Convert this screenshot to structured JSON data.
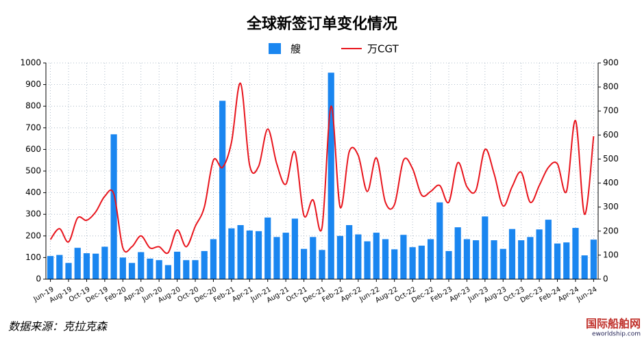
{
  "chart_data": {
    "type": "bar_line",
    "title": "全球新签订单变化情况",
    "source": "数据来源：克拉克森",
    "watermark": [
      "国际船舶网",
      "eworldship.com"
    ],
    "categories": [
      "Jun-19",
      null,
      "Aug-19",
      null,
      "Oct-19",
      null,
      "Dec-19",
      null,
      "Feb-20",
      null,
      "Apr-20",
      null,
      "Jun-20",
      null,
      "Aug-20",
      null,
      "Oct-20",
      null,
      "Dec-20",
      null,
      "Feb-21",
      null,
      "Apr-21",
      null,
      "Jun-21",
      null,
      "Aug-21",
      null,
      "Oct-21",
      null,
      "Dec-21",
      null,
      "Feb-22",
      null,
      "Apr-22",
      null,
      "Jun-22",
      null,
      "Aug-22",
      null,
      "Oct-22",
      null,
      "Dec-22",
      null,
      "Feb-23",
      null,
      "Apr-23",
      null,
      "Jun-23",
      null,
      "Aug-23",
      null,
      "Oct-23",
      null,
      "Dec-23",
      null,
      "Feb-24",
      null,
      "Apr-24",
      null,
      "Jun-24"
    ],
    "series": [
      {
        "name": "艘",
        "type": "bar",
        "color": "#1a86f0",
        "values": [
          107,
          112,
          75,
          145,
          120,
          118,
          150,
          670,
          100,
          75,
          125,
          95,
          88,
          65,
          127,
          88,
          88,
          130,
          185,
          825,
          235,
          250,
          225,
          222,
          285,
          195,
          215,
          280,
          140,
          195,
          135,
          955,
          200,
          250,
          207,
          175,
          215,
          185,
          138,
          205,
          148,
          155,
          185,
          355,
          130,
          240,
          185,
          180,
          290,
          180,
          140,
          232,
          180,
          195,
          230,
          275,
          165,
          170,
          237,
          110,
          183
        ]
      },
      {
        "name": "万CGT",
        "type": "line",
        "axis": "y2",
        "color": "#e8141c",
        "values": [
          165,
          210,
          155,
          255,
          245,
          280,
          345,
          355,
          130,
          135,
          180,
          130,
          135,
          110,
          205,
          135,
          220,
          300,
          495,
          465,
          570,
          815,
          475,
          470,
          625,
          480,
          395,
          530,
          265,
          330,
          215,
          720,
          300,
          530,
          515,
          365,
          505,
          320,
          310,
          495,
          460,
          350,
          365,
          390,
          320,
          485,
          385,
          370,
          540,
          440,
          305,
          385,
          445,
          320,
          390,
          465,
          480,
          365,
          660,
          270,
          595
        ]
      }
    ],
    "ylim": [
      0,
      1000
    ],
    "yticks": [
      0,
      100,
      200,
      300,
      400,
      500,
      600,
      700,
      800,
      900,
      1000
    ],
    "y2lim": [
      0,
      900
    ],
    "y2ticks": [
      0,
      100,
      200,
      300,
      400,
      500,
      600,
      700,
      800,
      900
    ],
    "grid": true
  }
}
